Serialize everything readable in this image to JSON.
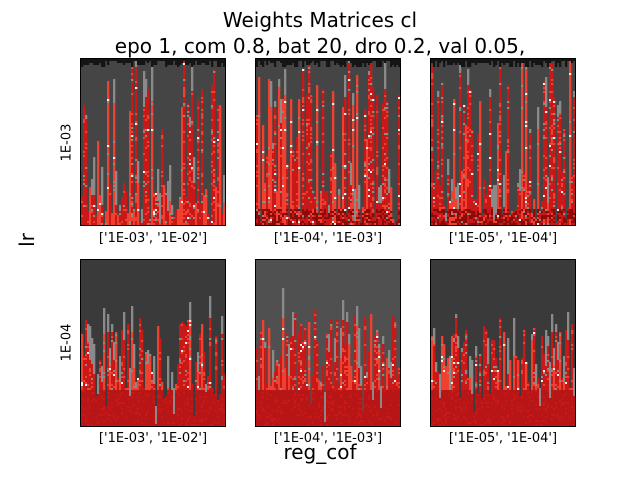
{
  "chart_data": {
    "type": "heatmap",
    "title_line1": "Weights Matrices cl",
    "title_line2": "epo 1, com 0.8, bat 20, dro 0.2, val 0.05,",
    "xlabel": "reg_cof",
    "ylabel": "lr",
    "rows": [
      "1E-03",
      "1E-04"
    ],
    "cols": [
      "['1E-03', '1E-02']",
      "['1E-04', '1E-03']",
      "['1E-05', '1E-04']"
    ],
    "palette": {
      "background": "#454545",
      "dark_red": "#8b0a0a",
      "red": "#c81818",
      "bright_red": "#f04030",
      "grey": "#8a8a8a",
      "white": "#f0f0f0"
    }
  }
}
